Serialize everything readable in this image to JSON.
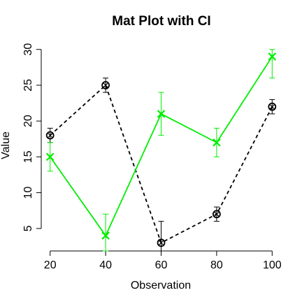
{
  "chart_data": {
    "type": "line",
    "title": "Mat Plot with CI",
    "xlabel": "Observation",
    "ylabel": "Value",
    "x": [
      20,
      40,
      60,
      80,
      100
    ],
    "xticks": [
      20,
      40,
      60,
      80,
      100
    ],
    "yticks": [
      5,
      10,
      15,
      20,
      25,
      30
    ],
    "xlim": [
      16.8,
      103.2
    ],
    "ylim": [
      1.86,
      31.14
    ],
    "grid": false,
    "series": [
      {
        "values": [
          18,
          25,
          3,
          7,
          22
        ],
        "ci_lower": [
          17,
          24,
          0,
          6,
          21
        ],
        "ci_upper": [
          19,
          26,
          6,
          8,
          23
        ],
        "color": "#000000",
        "line_style": "dashed",
        "marker": "circle-cross"
      },
      {
        "values": [
          15,
          4,
          21,
          17,
          29
        ],
        "ci_lower": [
          13,
          0,
          18,
          15,
          26
        ],
        "ci_upper": [
          17,
          7,
          24,
          19,
          30
        ],
        "color": "#00ee00",
        "line_style": "solid",
        "marker": "x"
      }
    ]
  }
}
